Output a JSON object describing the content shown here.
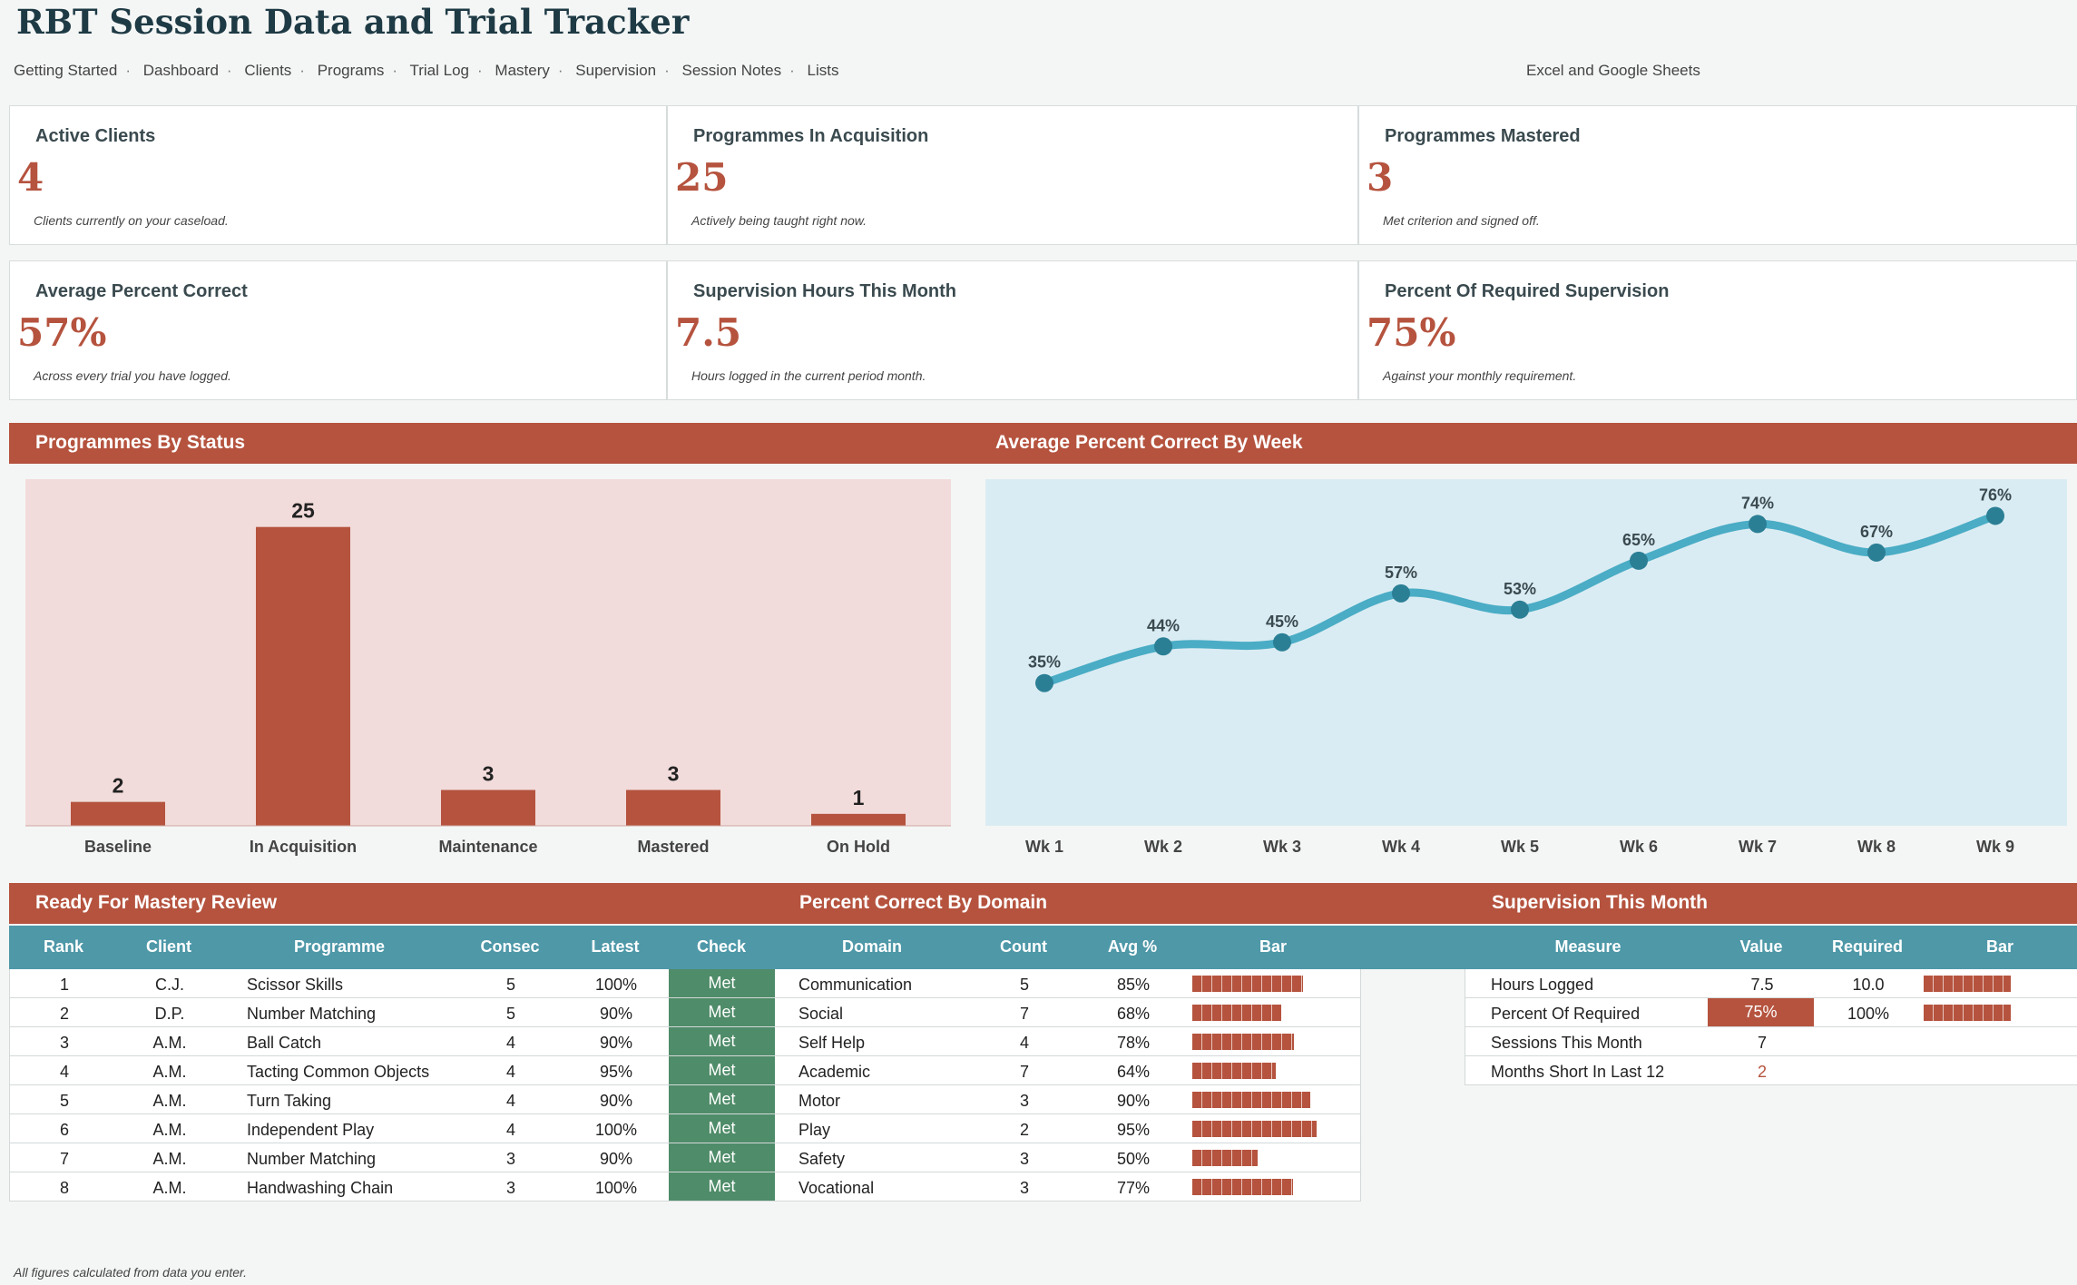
{
  "title": "RBT Session Data and Trial Tracker",
  "nav": [
    "Getting Started",
    "Dashboard",
    "Clients",
    "Programs",
    "Trial Log",
    "Mastery",
    "Supervision",
    "Session Notes",
    "Lists"
  ],
  "nav_right": "Excel and Google Sheets",
  "kpis": [
    {
      "label": "Active Clients",
      "value": "4",
      "note": "Clients currently on your caseload."
    },
    {
      "label": "Programmes In Acquisition",
      "value": "25",
      "note": "Actively being taught right now."
    },
    {
      "label": "Programmes Mastered",
      "value": "3",
      "note": "Met criterion and signed off."
    },
    {
      "label": "Average Percent Correct",
      "value": "57%",
      "note": "Across every trial you have logged."
    },
    {
      "label": "Supervision Hours This Month",
      "value": "7.5",
      "note": "Hours logged in the current period month."
    },
    {
      "label": "Percent Of Required Supervision",
      "value": "75%",
      "note": "Against your monthly requirement."
    }
  ],
  "sections": {
    "status_title": "Programmes By Status",
    "weekly_title": "Average Percent Correct By Week",
    "mastery_title": "Ready For Mastery Review",
    "domain_title": "Percent Correct By Domain",
    "supervision_title": "Supervision This Month"
  },
  "chart_data": [
    {
      "type": "bar",
      "categories": [
        "Baseline",
        "In Acquisition",
        "Maintenance",
        "Mastered",
        "On Hold"
      ],
      "values": [
        2,
        25,
        3,
        3,
        1
      ],
      "ylim": [
        0,
        29
      ],
      "colors": {
        "bar": "#b5533e",
        "background": "#f2dcdb"
      }
    },
    {
      "type": "line",
      "categories": [
        "Wk 1",
        "Wk 2",
        "Wk 3",
        "Wk 4",
        "Wk 5",
        "Wk 6",
        "Wk 7",
        "Wk 8",
        "Wk 9"
      ],
      "values": [
        35,
        44,
        45,
        57,
        53,
        65,
        74,
        67,
        76
      ],
      "value_labels": [
        "35%",
        "44%",
        "45%",
        "57%",
        "53%",
        "65%",
        "74%",
        "67%",
        "76%"
      ],
      "ylim": [
        0,
        85
      ],
      "colors": {
        "line": "#4aacc5",
        "point": "#2b7f95",
        "background": "#daecf3"
      }
    }
  ],
  "mastery_table": {
    "headers": {
      "rank": "Rank",
      "client": "Client",
      "programme": "Programme",
      "consec": "Consec",
      "latest": "Latest",
      "check": "Check"
    },
    "rows": [
      {
        "rank": "1",
        "client": "C.J.",
        "programme": "Scissor Skills",
        "consec": "5",
        "latest": "100%",
        "check": "Met"
      },
      {
        "rank": "2",
        "client": "D.P.",
        "programme": "Number Matching",
        "consec": "5",
        "latest": "90%",
        "check": "Met"
      },
      {
        "rank": "3",
        "client": "A.M.",
        "programme": "Ball Catch",
        "consec": "4",
        "latest": "90%",
        "check": "Met"
      },
      {
        "rank": "4",
        "client": "A.M.",
        "programme": "Tacting Common Objects",
        "consec": "4",
        "latest": "95%",
        "check": "Met"
      },
      {
        "rank": "5",
        "client": "A.M.",
        "programme": "Turn Taking",
        "consec": "4",
        "latest": "90%",
        "check": "Met"
      },
      {
        "rank": "6",
        "client": "A.M.",
        "programme": "Independent Play",
        "consec": "4",
        "latest": "100%",
        "check": "Met"
      },
      {
        "rank": "7",
        "client": "A.M.",
        "programme": "Number Matching",
        "consec": "3",
        "latest": "90%",
        "check": "Met"
      },
      {
        "rank": "8",
        "client": "A.M.",
        "programme": "Handwashing Chain",
        "consec": "3",
        "latest": "100%",
        "check": "Met"
      }
    ]
  },
  "domain_table": {
    "headers": {
      "domain": "Domain",
      "count": "Count",
      "avg": "Avg %",
      "bar": "Bar"
    },
    "rows": [
      {
        "domain": "Communication",
        "count": "5",
        "avg": "85%",
        "value": 85
      },
      {
        "domain": "Social",
        "count": "7",
        "avg": "68%",
        "value": 68
      },
      {
        "domain": "Self Help",
        "count": "4",
        "avg": "78%",
        "value": 78
      },
      {
        "domain": "Academic",
        "count": "7",
        "avg": "64%",
        "value": 64
      },
      {
        "domain": "Motor",
        "count": "3",
        "avg": "90%",
        "value": 90
      },
      {
        "domain": "Play",
        "count": "2",
        "avg": "95%",
        "value": 95
      },
      {
        "domain": "Safety",
        "count": "3",
        "avg": "50%",
        "value": 50
      },
      {
        "domain": "Vocational",
        "count": "3",
        "avg": "77%",
        "value": 77
      }
    ]
  },
  "supervision_table": {
    "headers": {
      "measure": "Measure",
      "value": "Value",
      "required": "Required",
      "bar": "Bar"
    },
    "rows": [
      {
        "measure": "Hours Logged",
        "value": "7.5",
        "required": "10.0",
        "fill": 0.75
      },
      {
        "measure": "Percent Of Required",
        "value": "75%",
        "required": "100%",
        "fill": 0.75
      },
      {
        "measure": "Sessions This Month",
        "value": "7",
        "required": ""
      },
      {
        "measure": "Months Short In Last 12",
        "value": "2",
        "required": ""
      }
    ]
  },
  "footer": "All figures calculated from data you enter.",
  "colors": {
    "accent": "#b5533e",
    "header": "#4e98a8",
    "met": "#4f8c69",
    "title": "#1e3a45"
  }
}
